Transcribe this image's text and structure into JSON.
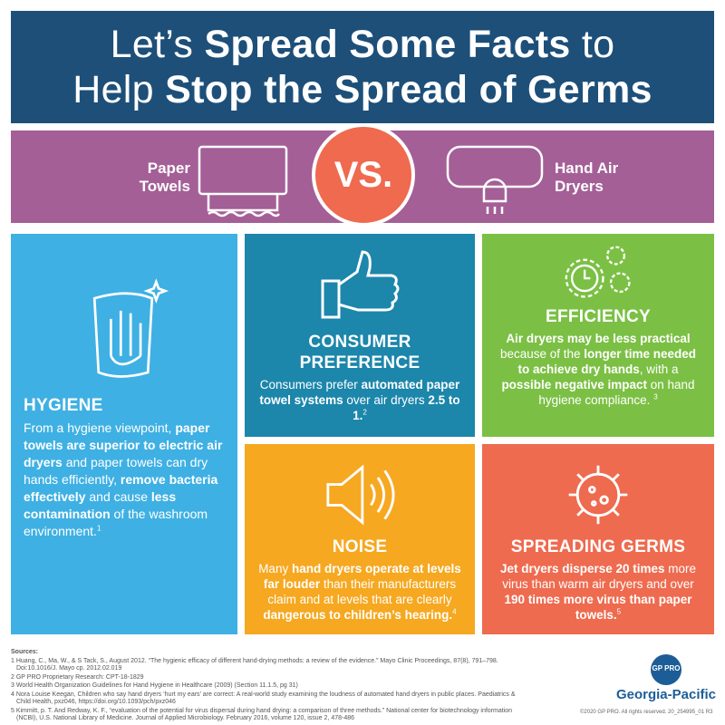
{
  "title": {
    "line1": [
      {
        "t": "Let’s "
      },
      {
        "t": "Spread Some Facts",
        "b": 1
      },
      {
        "t": " to"
      }
    ],
    "line2": [
      {
        "t": "Help "
      },
      {
        "t": "Stop the Spread of Germs",
        "b": 1
      }
    ]
  },
  "comparison": {
    "left": "Paper Towels",
    "vs": "VS.",
    "right": "Hand Air Dryers",
    "left_icon": "paper-towel-dispenser-icon",
    "right_icon": "hand-dryer-icon"
  },
  "cards": {
    "hygiene": {
      "heading": "HYGIENE",
      "icon": "hand-wiping-icon",
      "color": "#3fb0e3",
      "body": [
        {
          "t": "From a hygiene viewpoint, "
        },
        {
          "t": "paper towels are superior to electric air dryers",
          "b": 1
        },
        {
          "t": " and paper towels can dry hands efficiently, "
        },
        {
          "t": "remove bacteria effectively",
          "b": 1
        },
        {
          "t": " and cause "
        },
        {
          "t": "less contamination",
          "b": 1
        },
        {
          "t": " of the washroom environment."
        },
        {
          "t": "1",
          "s": 1
        }
      ]
    },
    "consumer": {
      "heading": "CONSUMER PREFERENCE",
      "icon": "thumbs-up-icon",
      "color": "#1c86ab",
      "body": [
        {
          "t": "Consumers prefer "
        },
        {
          "t": "automated paper towel systems",
          "b": 1
        },
        {
          "t": " over air dryers "
        },
        {
          "t": "2.5 to 1.",
          "b": 1
        },
        {
          "t": "2",
          "s": 1
        }
      ]
    },
    "efficiency": {
      "heading": "EFFICIENCY",
      "icon": "gears-clock-icon",
      "color": "#7bc044",
      "body": [
        {
          "t": "Air dryers may be less practical",
          "b": 1
        },
        {
          "t": " because of the "
        },
        {
          "t": "longer time needed to achieve dry hands",
          "b": 1
        },
        {
          "t": ", with a "
        },
        {
          "t": "possible negative impact",
          "b": 1
        },
        {
          "t": " on hand hygiene compliance. "
        },
        {
          "t": "3",
          "s": 1
        }
      ]
    },
    "noise": {
      "heading": "NOISE",
      "icon": "speaker-icon",
      "color": "#f6a821",
      "body": [
        {
          "t": "Many "
        },
        {
          "t": "hand dryers operate at levels far louder",
          "b": 1
        },
        {
          "t": " than their manufacturers claim and at levels that are clearly "
        },
        {
          "t": "dangerous to children’s hearing.",
          "b": 1
        },
        {
          "t": "4",
          "s": 1
        }
      ]
    },
    "germs": {
      "heading": "SPREADING GERMS",
      "icon": "virus-icon",
      "color": "#ee6b4f",
      "body": [
        {
          "t": "Jet dryers disperse 20 times",
          "b": 1
        },
        {
          "t": " more virus than warm air dryers and over "
        },
        {
          "t": "190 times more virus than paper towels.",
          "b": 1
        },
        {
          "t": "5",
          "s": 1
        }
      ]
    }
  },
  "sources": {
    "heading": "Sources:",
    "items": [
      "1 Huang, C., Ma, W., & S Tack, S., August 2012. “The hygienic efficacy of different hand-drying methods: a review of the evidence.” Mayo Clinic Proceedings, 87(8), 791–798. Doi:10.1016/J. Mayo cp. 2012.02.019",
      "2 GP PRO Proprietary Research: CPT-18-1829",
      "3 World Health Organization Guidelines for Hand Hygiene in Healthcare (2009) (Section 11.1.5, pg 31)",
      "4 Nora Louise Keegan, Children who say hand dryers ‘hurt my ears’ are correct: A real-world study examining the loudness of automated hand dryers in public places. Paediatrics & Child Health, pxz046, https://doi.org/10.1093/pch/pxz046",
      "5 Kimmitt, p. T. And Redway, K. F., “evaluation of the potential for virus dispersal during hand drying: a comparison of three methods.” National center for biotechnology information (NCBI), U.S. National Library of Medicine. Journal of Applied Microbiology. February 2016, volume 120, issue 2, 478-486"
    ]
  },
  "logo": {
    "badge": "GP PRO",
    "brand": "Georgia-Pacific"
  },
  "copyright": "©2020 GP PRO. All rights reserved. 20_254995_01 R3"
}
